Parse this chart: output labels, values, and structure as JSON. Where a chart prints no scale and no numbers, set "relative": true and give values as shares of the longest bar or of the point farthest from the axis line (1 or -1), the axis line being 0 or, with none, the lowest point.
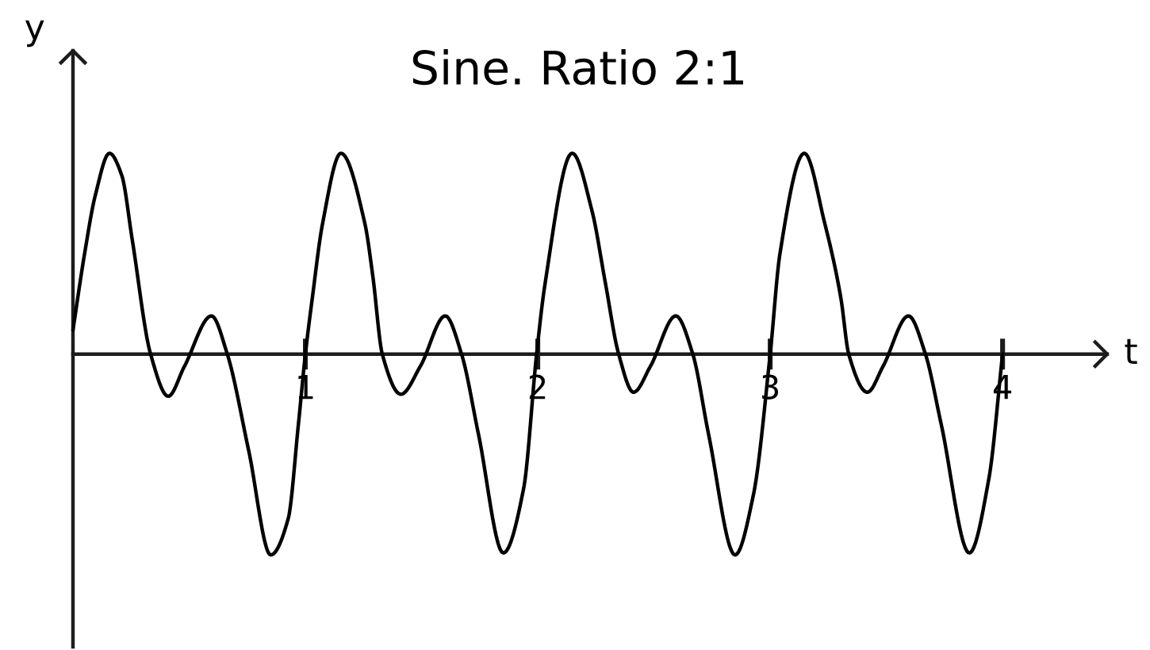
{
  "chart_data": {
    "type": "line",
    "title": "Sine. Ratio 2:1",
    "xlabel": "t",
    "ylabel": "y",
    "relative": true,
    "xlim": [
      0,
      4.45
    ],
    "xticks": [
      1,
      2,
      3,
      4
    ],
    "color": "#000000",
    "x": [
      0,
      0.05,
      0.096,
      0.157,
      0.21,
      0.255,
      0.334,
      0.41,
      0.48,
      0.596,
      0.664,
      0.756,
      0.851,
      0.926,
      0.97,
      1.0,
      1.03,
      1.074,
      1.153,
      1.256,
      1.29,
      1.331,
      1.411,
      1.495,
      1.602,
      1.672,
      1.745,
      1.852,
      1.939,
      1.995,
      2.03,
      2.148,
      2.234,
      2.29,
      2.348,
      2.412,
      2.485,
      2.594,
      2.667,
      2.735,
      2.849,
      2.928,
      3.0,
      3.042,
      3.147,
      3.235,
      3.304,
      3.338,
      3.418,
      3.486,
      3.595,
      3.668,
      3.736,
      3.857,
      3.941,
      4.0
    ],
    "values": [
      0.12,
      0.5,
      0.79,
      1.0,
      0.89,
      0.57,
      0,
      -0.21,
      -0.06,
      0.19,
      0,
      -0.48,
      -1.0,
      -0.82,
      -0.35,
      0,
      0.28,
      0.65,
      1.0,
      0.65,
      0.39,
      0,
      -0.2,
      -0.06,
      0.19,
      0,
      -0.4,
      -0.99,
      -0.67,
      0,
      0.34,
      1.0,
      0.71,
      0.36,
      0,
      -0.19,
      -0.06,
      0.19,
      0,
      -0.4,
      -1.0,
      -0.7,
      0,
      0.5,
      1.0,
      0.65,
      0.28,
      0,
      -0.19,
      -0.06,
      0.19,
      0,
      -0.35,
      -0.99,
      -0.62,
      0
    ],
    "line_style": "solid"
  }
}
